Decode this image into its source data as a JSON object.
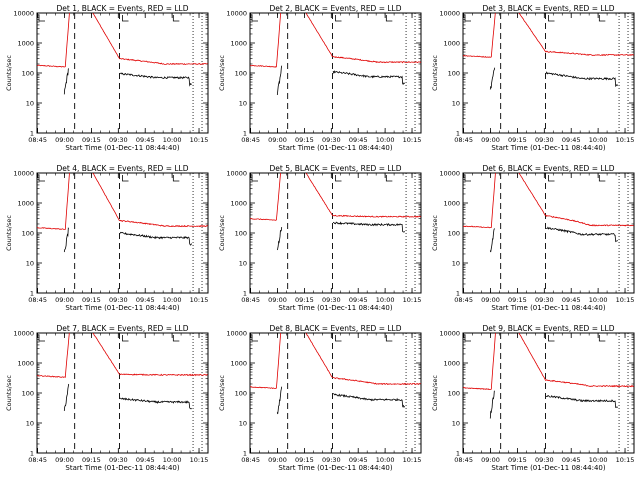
{
  "figure": {
    "xlabel": "Start Time (01-Dec-11 08:44:40)",
    "ylabel": "Counts/sec",
    "x_ticks": [
      "08:45",
      "09:00",
      "09:15",
      "09:30",
      "09:45",
      "10:00",
      "10:15"
    ],
    "y_ticks": [
      "1",
      "10",
      "100",
      "1000",
      "10000"
    ],
    "colors": {
      "events": "#000000",
      "lld": "#e00000"
    }
  },
  "chart_data": [
    {
      "type": "line",
      "title": "Det 1, BLACK = Events, RED = LLD",
      "series": [
        {
          "name": "BLACK = Events",
          "values": []
        },
        {
          "name": "RED = LLD",
          "values": []
        }
      ],
      "lld_pre": 180,
      "events_pre": 42,
      "lld_post": 200,
      "events_post": 70,
      "lld_step": 300,
      "events_step": 95,
      "flare_rise_min": 17,
      "flare_end_min": 46,
      "dashed_min": [
        21,
        46
      ],
      "dotted_min": [
        87,
        92
      ],
      "xlim": [
        "08:44:40",
        "10:20:00"
      ],
      "ylim": [
        1,
        10000
      ],
      "yscale": "log"
    },
    {
      "type": "line",
      "title": "Det 2, BLACK = Events, RED = LLD",
      "series": [
        {
          "name": "BLACK = Events",
          "values": []
        },
        {
          "name": "RED = LLD",
          "values": []
        }
      ],
      "lld_pre": 180,
      "events_pre": 40,
      "lld_post": 230,
      "events_post": 75,
      "lld_step": 350,
      "events_step": 110,
      "flare_rise_min": 16,
      "flare_end_min": 46,
      "dashed_min": [
        21,
        46
      ],
      "dotted_min": [
        87,
        92
      ],
      "xlim": [
        "08:44:40",
        "10:20:00"
      ],
      "ylim": [
        1,
        10000
      ],
      "yscale": "log"
    },
    {
      "type": "line",
      "title": "Det 3, BLACK = Events, RED = LLD",
      "series": [
        {
          "name": "BLACK = Events",
          "values": []
        },
        {
          "name": "RED = LLD",
          "values": []
        }
      ],
      "lld_pre": 380,
      "events_pre": 50,
      "lld_post": 400,
      "events_post": 65,
      "lld_step": 520,
      "events_step": 100,
      "flare_rise_min": 17,
      "flare_end_min": 46,
      "dashed_min": [
        21,
        46
      ],
      "dotted_min": [
        87,
        92
      ],
      "xlim": [
        "08:44:40",
        "10:20:00"
      ],
      "ylim": [
        1,
        10000
      ],
      "yscale": "log"
    },
    {
      "type": "line",
      "title": "Det 4, BLACK = Events, RED = LLD",
      "series": [
        {
          "name": "BLACK = Events",
          "values": []
        },
        {
          "name": "RED = LLD",
          "values": []
        }
      ],
      "lld_pre": 150,
      "events_pre": 40,
      "lld_post": 170,
      "events_post": 70,
      "lld_step": 260,
      "events_step": 100,
      "flare_rise_min": 17,
      "flare_end_min": 46,
      "dashed_min": [
        21,
        46
      ],
      "dotted_min": [
        87,
        92
      ],
      "xlim": [
        "08:44:40",
        "10:20:00"
      ],
      "ylim": [
        1,
        10000
      ],
      "yscale": "log"
    },
    {
      "type": "line",
      "title": "Det 5, BLACK = Events, RED = LLD",
      "series": [
        {
          "name": "BLACK = Events",
          "values": []
        },
        {
          "name": "RED = LLD",
          "values": []
        }
      ],
      "lld_pre": 300,
      "events_pre": 50,
      "lld_post": 350,
      "events_post": 190,
      "lld_step": 380,
      "events_step": 220,
      "flare_rise_min": 16,
      "flare_end_min": 46,
      "dashed_min": [
        21,
        46
      ],
      "dotted_min": [
        87,
        92
      ],
      "xlim": [
        "08:44:40",
        "10:20:00"
      ],
      "ylim": [
        1,
        10000
      ],
      "yscale": "log"
    },
    {
      "type": "line",
      "title": "Det 6, BLACK = Events, RED = LLD",
      "series": [
        {
          "name": "BLACK = Events",
          "values": []
        },
        {
          "name": "RED = LLD",
          "values": []
        }
      ],
      "lld_pre": 170,
      "events_pre": 45,
      "lld_post": 180,
      "events_post": 90,
      "lld_step": 380,
      "events_step": 150,
      "flare_rise_min": 17,
      "flare_end_min": 46,
      "dashed_min": [
        21,
        46
      ],
      "dotted_min": [
        87,
        92
      ],
      "xlim": [
        "08:44:40",
        "10:20:00"
      ],
      "ylim": [
        1,
        10000
      ],
      "yscale": "log"
    },
    {
      "type": "line",
      "title": "Det 7, BLACK = Events, RED = LLD",
      "series": [
        {
          "name": "BLACK = Events",
          "values": []
        },
        {
          "name": "RED = LLD",
          "values": []
        }
      ],
      "lld_pre": 380,
      "events_pre": 50,
      "lld_post": 400,
      "events_post": 50,
      "lld_step": 420,
      "events_step": 65,
      "flare_rise_min": 17,
      "flare_end_min": 46,
      "dashed_min": [
        21,
        46
      ],
      "dotted_min": [
        87,
        92
      ],
      "xlim": [
        "08:44:40",
        "10:20:00"
      ],
      "ylim": [
        1,
        10000
      ],
      "yscale": "log"
    },
    {
      "type": "line",
      "title": "Det 8, BLACK = Events, RED = LLD",
      "series": [
        {
          "name": "BLACK = Events",
          "values": []
        },
        {
          "name": "RED = LLD",
          "values": []
        }
      ],
      "lld_pre": 160,
      "events_pre": 40,
      "lld_post": 200,
      "events_post": 60,
      "lld_step": 320,
      "events_step": 90,
      "flare_rise_min": 16,
      "flare_end_min": 46,
      "dashed_min": [
        21,
        46
      ],
      "dotted_min": [
        87,
        92
      ],
      "xlim": [
        "08:44:40",
        "10:20:00"
      ],
      "ylim": [
        1,
        10000
      ],
      "yscale": "log"
    },
    {
      "type": "line",
      "title": "Det 9, BLACK = Events, RED = LLD",
      "series": [
        {
          "name": "BLACK = Events",
          "values": []
        },
        {
          "name": "RED = LLD",
          "values": []
        }
      ],
      "lld_pre": 150,
      "events_pre": 35,
      "lld_post": 170,
      "events_post": 55,
      "lld_step": 270,
      "events_step": 80,
      "flare_rise_min": 17,
      "flare_end_min": 46,
      "dashed_min": [
        21,
        46
      ],
      "dotted_min": [
        87,
        92
      ],
      "xlim": [
        "08:44:40",
        "10:20:00"
      ],
      "ylim": [
        1,
        10000
      ],
      "yscale": "log"
    }
  ]
}
